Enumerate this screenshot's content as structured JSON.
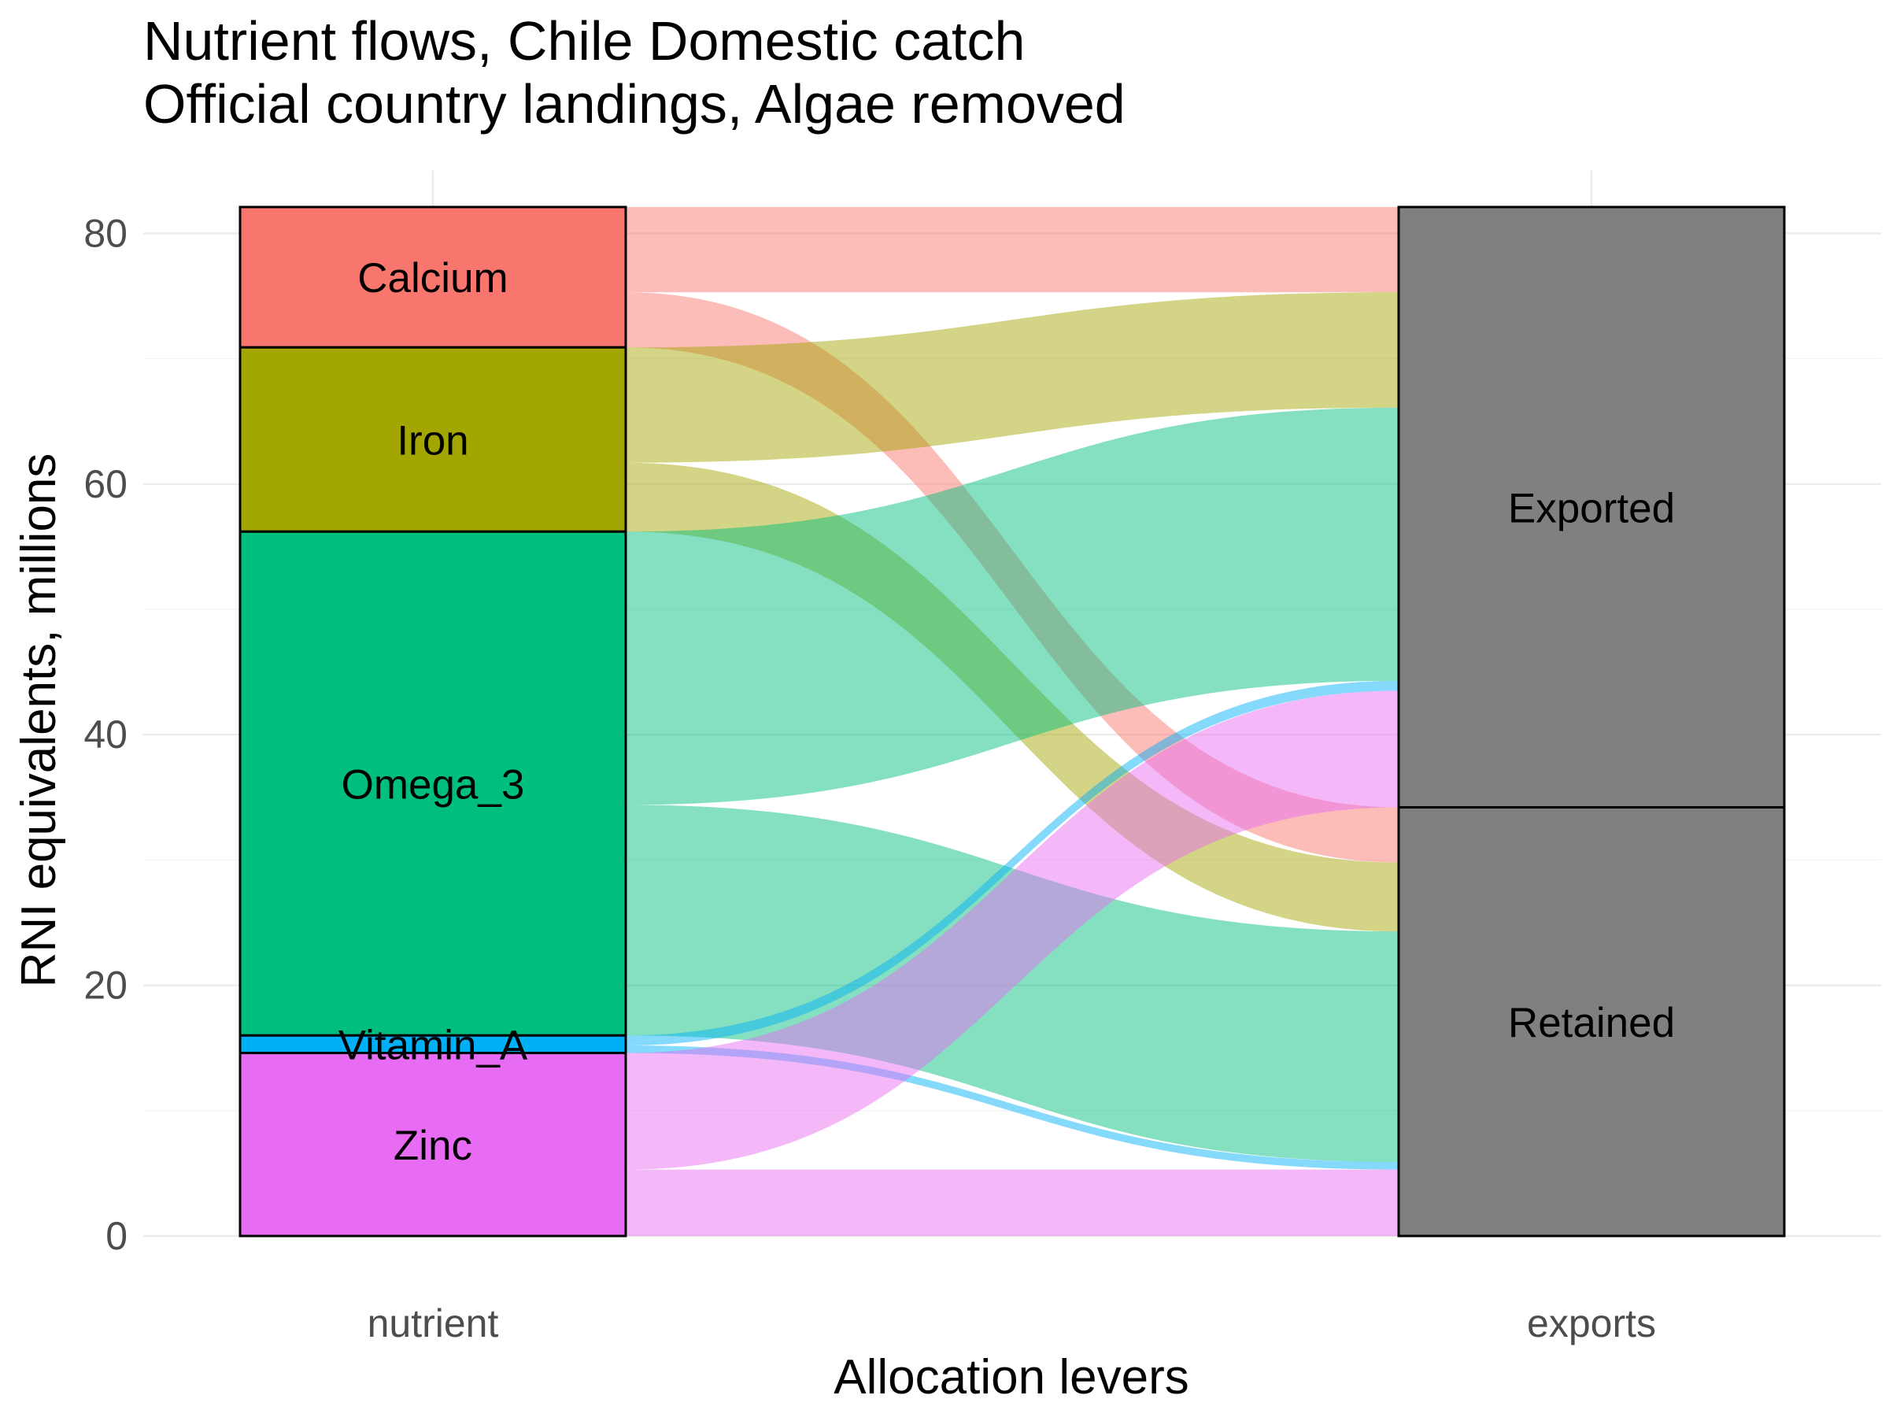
{
  "chart_data": {
    "type": "alluvial",
    "title": "Nutrient flows, Chile Domestic catch",
    "subtitle": "Official country landings, Algae removed",
    "xlabel": "Allocation levers",
    "ylabel": "RNI equivalents, millions",
    "ylim": [
      0,
      85
    ],
    "y_ticks": [
      0,
      20,
      40,
      60,
      80
    ],
    "y_tick_labels": [
      "0",
      "20",
      "40",
      "60",
      "80"
    ],
    "axes": [
      "nutrient",
      "exports"
    ],
    "gridlines": true,
    "nutrients": [
      {
        "name": "Calcium",
        "label": "Calcium",
        "color": "#F8766D"
      },
      {
        "name": "Iron",
        "label": "Iron",
        "color": "#A3A500"
      },
      {
        "name": "Omega_3",
        "label": "Omega_3",
        "color": "#00BF7D"
      },
      {
        "name": "Vitamin_A",
        "label": "Vitamin_A",
        "color": "#00B0F6"
      },
      {
        "name": "Zinc",
        "label": "Zinc",
        "color": "#E76BF3"
      }
    ],
    "export_categories": [
      {
        "name": "Exported",
        "label": "Exported",
        "color": "#808080"
      },
      {
        "name": "Retained",
        "label": "Retained",
        "color": "#808080"
      }
    ],
    "flows": [
      {
        "nutrient": "Calcium",
        "category": "Exported",
        "value": 6.8
      },
      {
        "nutrient": "Calcium",
        "category": "Retained",
        "value": 4.4
      },
      {
        "nutrient": "Iron",
        "category": "Exported",
        "value": 9.2
      },
      {
        "nutrient": "Iron",
        "category": "Retained",
        "value": 5.5
      },
      {
        "nutrient": "Omega_3",
        "category": "Exported",
        "value": 21.8
      },
      {
        "nutrient": "Omega_3",
        "category": "Retained",
        "value": 18.4
      },
      {
        "nutrient": "Vitamin_A",
        "category": "Exported",
        "value": 0.8
      },
      {
        "nutrient": "Vitamin_A",
        "category": "Retained",
        "value": 0.6
      },
      {
        "nutrient": "Zinc",
        "category": "Exported",
        "value": 9.3
      },
      {
        "nutrient": "Zinc",
        "category": "Retained",
        "value": 5.3
      }
    ]
  }
}
